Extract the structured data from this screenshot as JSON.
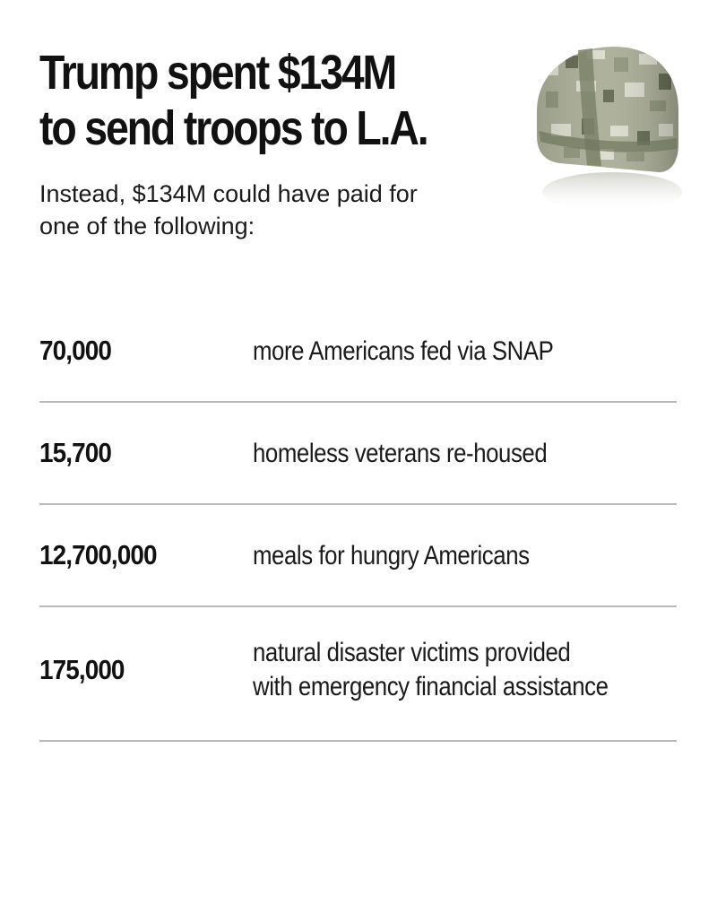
{
  "header": {
    "title_line1": "Trump spent $134M",
    "title_line2": "to send troops to L.A.",
    "subtitle_line1": "Instead, $134M could have paid for",
    "subtitle_line2": "one of the following:"
  },
  "image": {
    "icon": "military-helmet-icon",
    "colors": {
      "camo_base": "#a9ad95",
      "camo_light": "#dcdccd",
      "camo_mid": "#8d9478",
      "camo_dark": "#5f6650",
      "strap": "#7d8468"
    }
  },
  "rows": [
    {
      "number": "70,000",
      "description": [
        "more Americans fed via SNAP"
      ]
    },
    {
      "number": "15,700",
      "description": [
        "homeless veterans re-housed"
      ]
    },
    {
      "number": "12,700,000",
      "description": [
        "meals for hungry Americans"
      ]
    },
    {
      "number": "175,000",
      "description": [
        "natural disaster victims provided",
        "with emergency financial assistance"
      ]
    }
  ],
  "theme": {
    "background": "#ffffff",
    "text": "#111111",
    "divider": "#b9b9b9"
  }
}
